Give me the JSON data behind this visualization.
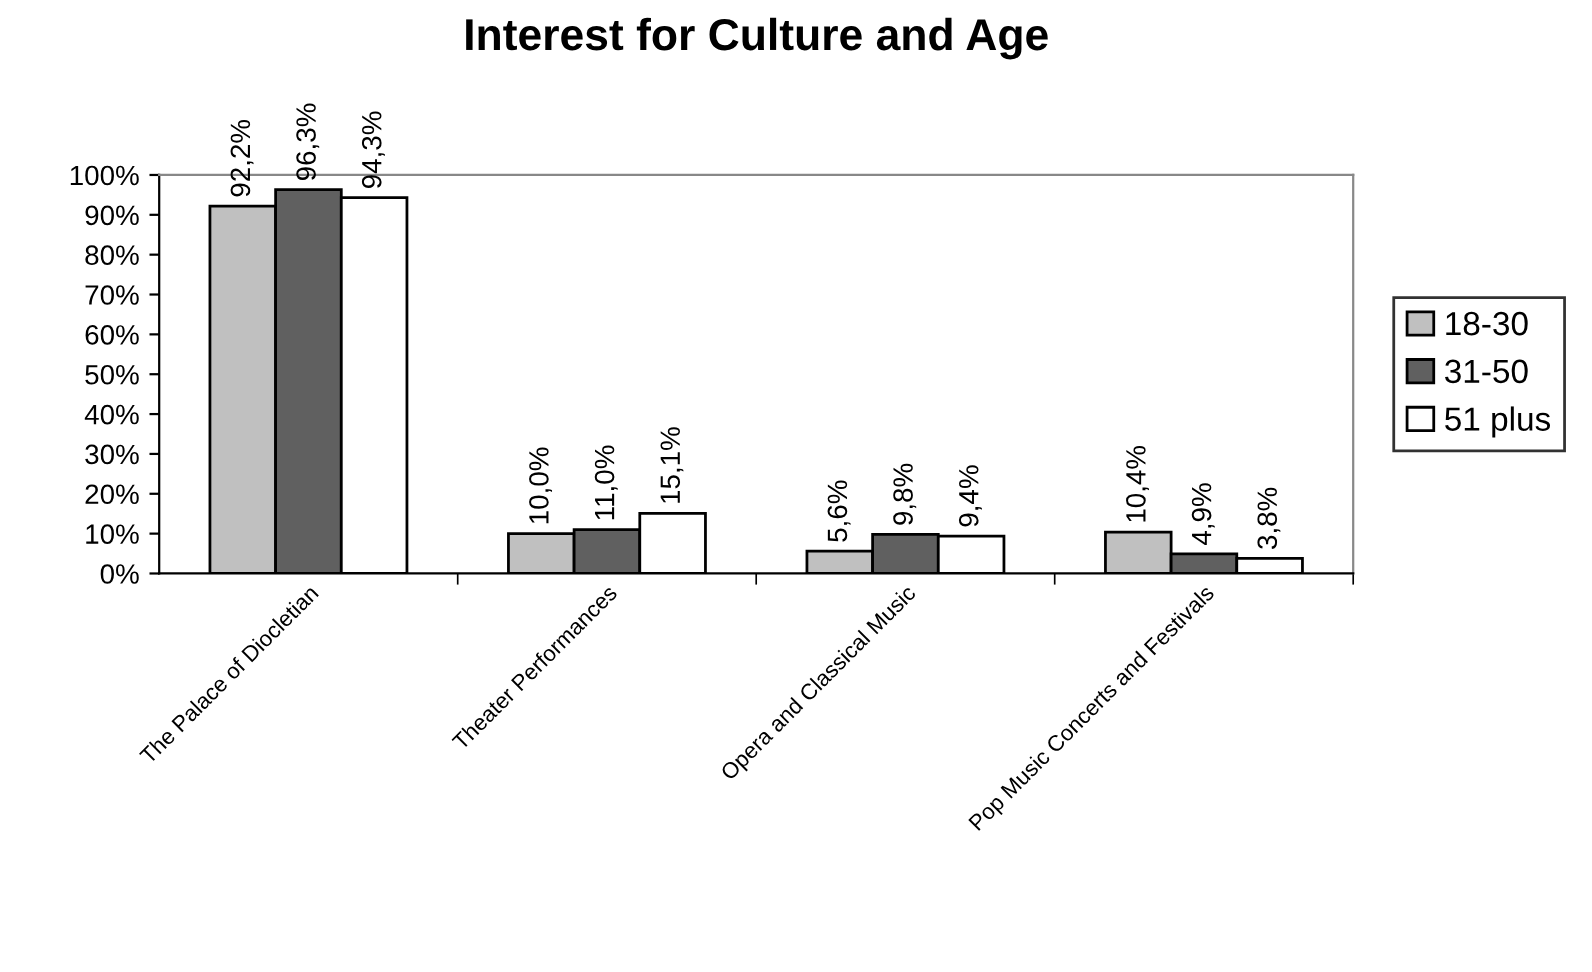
{
  "chart_data": {
    "type": "bar",
    "title": "Interest for Culture and Age",
    "categories": [
      "The Palace of Diocletian",
      "Theater Performances",
      "Opera and Classical Music",
      "Pop Music Concerts and Festivals"
    ],
    "series": [
      {
        "name": "18-30",
        "color": "#c0c0c0",
        "values": [
          92.2,
          10.0,
          5.6,
          10.4
        ],
        "value_labels": [
          "92,2%",
          "10,0%",
          "5,6%",
          "10,4%"
        ]
      },
      {
        "name": "31-50",
        "color": "#606060",
        "values": [
          96.3,
          11.0,
          9.8,
          4.9
        ],
        "value_labels": [
          "96,3%",
          "11,0%",
          "9,8%",
          "4,9%"
        ]
      },
      {
        "name": "51 plus",
        "color": "#ffffff",
        "values": [
          94.3,
          15.1,
          9.4,
          3.8
        ],
        "value_labels": [
          "94,3%",
          "15,1%",
          "9,4%",
          "3,8%"
        ]
      }
    ],
    "ylim": [
      0,
      100
    ],
    "yticks": [
      {
        "value": 0,
        "label": "0%"
      },
      {
        "value": 10,
        "label": "10%"
      },
      {
        "value": 20,
        "label": "20%"
      },
      {
        "value": 30,
        "label": "30%"
      },
      {
        "value": 40,
        "label": "40%"
      },
      {
        "value": 50,
        "label": "50%"
      },
      {
        "value": 60,
        "label": "60%"
      },
      {
        "value": 70,
        "label": "70%"
      },
      {
        "value": 80,
        "label": "80%"
      },
      {
        "value": 90,
        "label": "90%"
      },
      {
        "value": 100,
        "label": "100%"
      }
    ],
    "grid": false,
    "legend": "right"
  }
}
